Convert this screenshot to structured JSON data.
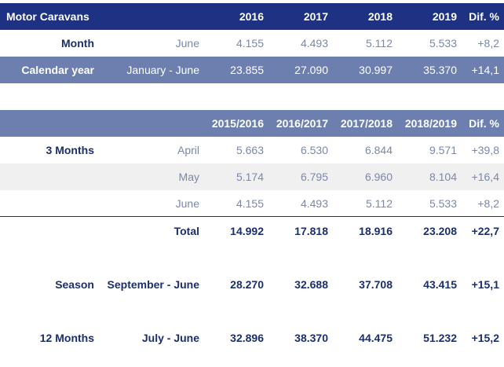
{
  "table1": {
    "header": [
      "Motor Caravans",
      "2016",
      "2017",
      "2018",
      "2019",
      "Dif. %"
    ],
    "rows": [
      {
        "label": "Month",
        "period": "June",
        "values": [
          "4.155",
          "4.493",
          "5.112",
          "5.533"
        ],
        "diff": "+8,2"
      },
      {
        "label": "Calendar year",
        "period": "January - June",
        "values": [
          "23.855",
          "27.090",
          "30.997",
          "35.370"
        ],
        "diff": "+14,1"
      }
    ]
  },
  "table2": {
    "header": [
      "2015/2016",
      "2016/2017",
      "2017/2018",
      "2018/2019",
      "Dif. %"
    ],
    "rows": [
      {
        "label": "3 Months",
        "period": "April",
        "values": [
          "5.663",
          "6.530",
          "6.844",
          "9.571"
        ],
        "diff": "+39,8"
      },
      {
        "label": "",
        "period": "May",
        "values": [
          "5.174",
          "6.795",
          "6.960",
          "8.104"
        ],
        "diff": "+16,4"
      },
      {
        "label": "",
        "period": "June",
        "values": [
          "4.155",
          "4.493",
          "5.112",
          "5.533"
        ],
        "diff": "+8,2"
      },
      {
        "label": "",
        "period": "Total",
        "values": [
          "14.992",
          "17.818",
          "18.916",
          "23.208"
        ],
        "diff": "+22,7"
      },
      {
        "label": "Season",
        "period": "September - June",
        "values": [
          "28.270",
          "32.688",
          "37.708",
          "43.415"
        ],
        "diff": "+15,1"
      },
      {
        "label": "12 Months",
        "period": "July - June",
        "values": [
          "32.896",
          "38.370",
          "44.475",
          "51.232"
        ],
        "diff": "+15,2"
      }
    ]
  }
}
